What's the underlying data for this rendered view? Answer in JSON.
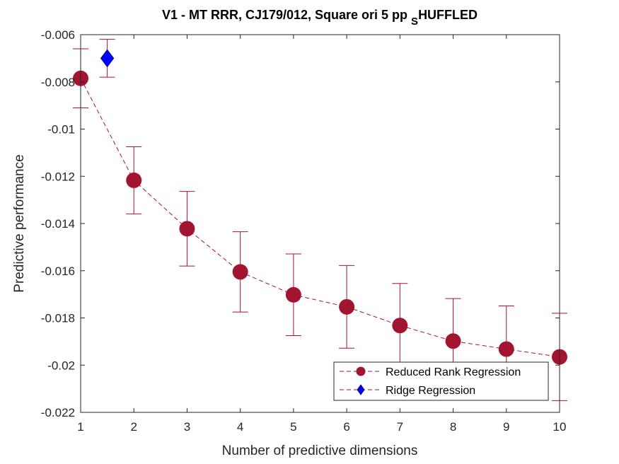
{
  "chart_data": {
    "type": "scatter",
    "title_main": "V1 - MT RRR, CJ179/012, Square ori 5 pp ",
    "title_sub": "S",
    "title_end": "HUFFLED",
    "xlabel": "Number of predictive dimensions",
    "ylabel": "Predictive performance",
    "xlim": [
      1,
      10
    ],
    "ylim": [
      -0.022,
      -0.006
    ],
    "xticks": [
      1,
      2,
      3,
      4,
      5,
      6,
      7,
      8,
      9,
      10
    ],
    "xtick_labels": [
      "1",
      "2",
      "3",
      "4",
      "5",
      "6",
      "7",
      "8",
      "9",
      "10"
    ],
    "yticks": [
      -0.022,
      -0.02,
      -0.018,
      -0.016,
      -0.014,
      -0.012,
      -0.01,
      -0.008,
      -0.006
    ],
    "ytick_labels": [
      "-0.022",
      "-0.02",
      "-0.018",
      "-0.016",
      "-0.014",
      "-0.012",
      "-0.01",
      "-0.008",
      "-0.006"
    ],
    "legend_position": "bottom-right",
    "series": [
      {
        "name": "Reduced Rank Regression",
        "color": "#a2142f",
        "marker": "circle",
        "line": "dashed",
        "x": [
          1,
          2,
          3,
          4,
          5,
          6,
          7,
          8,
          9,
          10
        ],
        "y": [
          -0.00785,
          -0.01217,
          -0.01422,
          -0.01605,
          -0.01702,
          -0.01753,
          -0.01832,
          -0.01898,
          -0.01932,
          -0.01965
        ],
        "err": [
          0.00125,
          0.00142,
          0.00158,
          0.0017,
          0.00173,
          0.00175,
          0.00178,
          0.0018,
          0.00183,
          0.00185
        ]
      },
      {
        "name": "Ridge Regression",
        "color": "#0000ff",
        "marker": "diamond",
        "line": "dashed",
        "x": [
          1.5
        ],
        "y": [
          -0.007
        ],
        "err": [
          0.0008
        ]
      }
    ]
  }
}
